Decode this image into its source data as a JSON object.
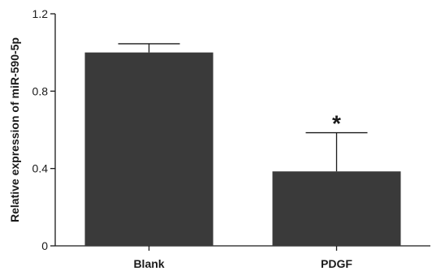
{
  "chart_data": {
    "type": "bar",
    "categories": [
      "Blank",
      "PDGF"
    ],
    "values": [
      1.0,
      0.385
    ],
    "errors": [
      0.045,
      0.2
    ],
    "significance": [
      "",
      "*"
    ],
    "ylabel": "Relative expression of miR-590-5p",
    "xlabel": "",
    "ylim": [
      0,
      1.2
    ],
    "yticks": [
      0,
      0.4,
      0.8,
      1.2
    ],
    "ytick_labels": [
      "0",
      "0.4",
      "0.8",
      "1.2"
    ],
    "grid": false,
    "legend": "none",
    "bar_color": "#3a3a3a",
    "axis_color": "#1a1a1a"
  }
}
